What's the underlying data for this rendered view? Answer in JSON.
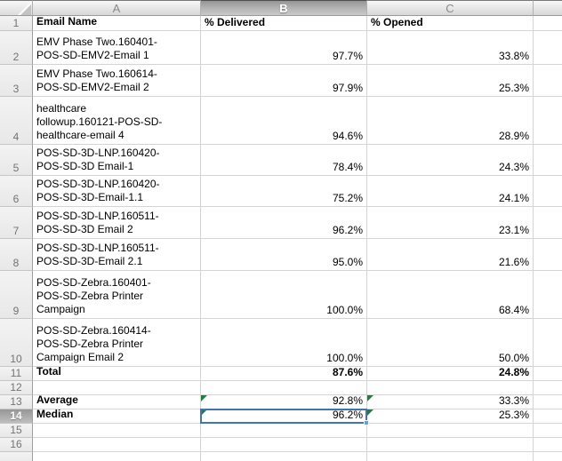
{
  "sheet": {
    "column_letters": [
      "A",
      "B",
      "C"
    ],
    "selection": {
      "active_cell_column": "B",
      "active_cell_row": "14"
    },
    "rows": [
      {
        "num": "1",
        "is_header": true,
        "name": "Email Name",
        "delivered": "% Delivered",
        "opened": "% Opened"
      },
      {
        "num": "2",
        "name_lines": [
          "EMV Phase Two.160401-",
          "POS-SD-EMV2-Email 1"
        ],
        "delivered": "97.7%",
        "opened": "33.8%"
      },
      {
        "num": "3",
        "name_lines": [
          "EMV Phase Two.160614-",
          "POS-SD-EMV2-Email 2"
        ],
        "delivered": "97.9%",
        "opened": "25.3%"
      },
      {
        "num": "4",
        "name_lines": [
          "healthcare",
          "followup.160121-POS-SD-",
          "healthcare-email 4"
        ],
        "delivered": "94.6%",
        "opened": "28.9%"
      },
      {
        "num": "5",
        "name_lines": [
          "POS-SD-3D-LNP.160420-",
          "POS-SD-3D Email-1"
        ],
        "delivered": "78.4%",
        "opened": "24.3%"
      },
      {
        "num": "6",
        "name_lines": [
          "POS-SD-3D-LNP.160420-",
          "POS-SD-3D-Email-1.1"
        ],
        "delivered": "75.2%",
        "opened": "24.1%"
      },
      {
        "num": "7",
        "name_lines": [
          "POS-SD-3D-LNP.160511-",
          "POS-SD-3D Email 2"
        ],
        "delivered": "96.2%",
        "opened": "23.1%"
      },
      {
        "num": "8",
        "name_lines": [
          "POS-SD-3D-LNP.160511-",
          "POS-SD-3D-Email 2.1"
        ],
        "delivered": "95.0%",
        "opened": "21.6%"
      },
      {
        "num": "9",
        "name_lines": [
          "POS-SD-Zebra.160401-",
          "POS-SD-Zebra Printer",
          "Campaign"
        ],
        "delivered": "100.0%",
        "opened": "68.4%"
      },
      {
        "num": "10",
        "name_lines": [
          "POS-SD-Zebra.160414-",
          "POS-SD-Zebra Printer",
          "Campaign Email 2"
        ],
        "delivered": "100.0%",
        "opened": "50.0%"
      },
      {
        "num": "11",
        "name_lines": [
          "Total"
        ],
        "delivered": "87.6%",
        "opened": "24.8%",
        "bold": true
      },
      {
        "num": "12",
        "name_lines": [],
        "delivered": "",
        "opened": ""
      },
      {
        "num": "13",
        "name_lines": [
          "Average"
        ],
        "delivered": "92.8%",
        "opened": "33.3%",
        "bold_name": true,
        "indicators": true
      },
      {
        "num": "14",
        "name_lines": [
          "Median"
        ],
        "delivered": "96.2%",
        "opened": "25.3%",
        "bold_name": true,
        "indicators": true,
        "selected_cell": "b"
      },
      {
        "num": "15",
        "name_lines": [],
        "delivered": "",
        "opened": ""
      },
      {
        "num": "16",
        "name_lines": [],
        "delivered": "",
        "opened": ""
      }
    ]
  }
}
